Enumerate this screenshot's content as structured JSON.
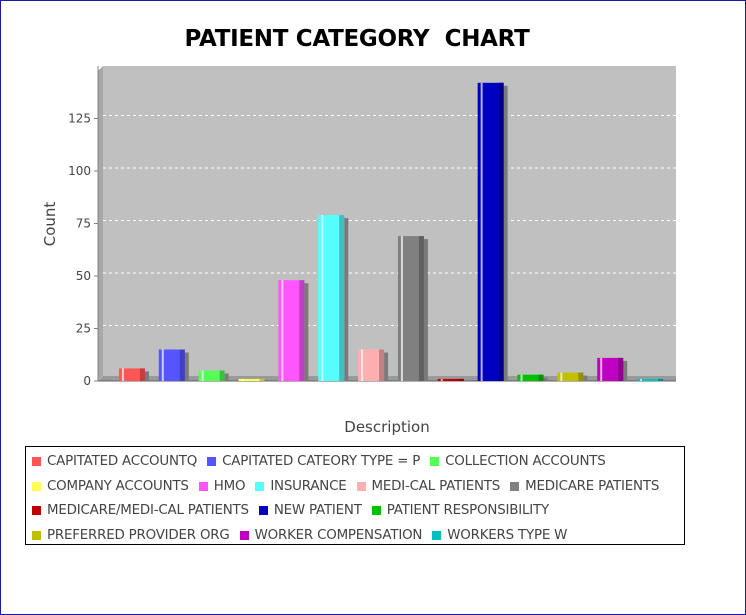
{
  "chart_data": {
    "type": "bar",
    "title": "PATIENT CATEGORY  CHART",
    "xlabel": "Description",
    "ylabel": "Count",
    "ylim": [
      0,
      150
    ],
    "yticks": [
      0,
      25,
      50,
      75,
      100,
      125
    ],
    "grid": true,
    "legend_position": "bottom",
    "series": [
      {
        "name": "CAPITATED ACCOUNTQ",
        "value": 6,
        "color": "#ff5555"
      },
      {
        "name": "CAPITATED CATEORY TYPE = P",
        "value": 15,
        "color": "#5555ff"
      },
      {
        "name": "COLLECTION ACCOUNTS",
        "value": 5,
        "color": "#55ff55"
      },
      {
        "name": "COMPANY ACCOUNTS",
        "value": 1,
        "color": "#ffff55"
      },
      {
        "name": "HMO",
        "value": 48,
        "color": "#ff55ff"
      },
      {
        "name": "INSURANCE",
        "value": 79,
        "color": "#55ffff"
      },
      {
        "name": "MEDI-CAL PATIENTS",
        "value": 15,
        "color": "#ffafaf"
      },
      {
        "name": "MEDICARE PATIENTS",
        "value": 69,
        "color": "#808080"
      },
      {
        "name": "MEDICARE/MEDI-CAL PATIENTS",
        "value": 1,
        "color": "#c00000"
      },
      {
        "name": "NEW PATIENT",
        "value": 142,
        "color": "#0000c0"
      },
      {
        "name": "PATIENT RESPONSIBILITY",
        "value": 3,
        "color": "#00c000"
      },
      {
        "name": "PREFERRED PROVIDER ORG",
        "value": 4,
        "color": "#c0c000"
      },
      {
        "name": "WORKER COMPENSATION",
        "value": 11,
        "color": "#c000c0"
      },
      {
        "name": "WORKERS TYPE W",
        "value": 1,
        "color": "#00c0c0"
      }
    ],
    "legend_rows": [
      [
        0,
        1,
        2
      ],
      [
        3,
        4,
        5,
        6,
        7
      ],
      [
        8,
        9,
        10
      ],
      [
        11,
        12,
        13
      ]
    ],
    "plot_background": "#c0c0c0",
    "gridline_color": "#ffffff"
  }
}
